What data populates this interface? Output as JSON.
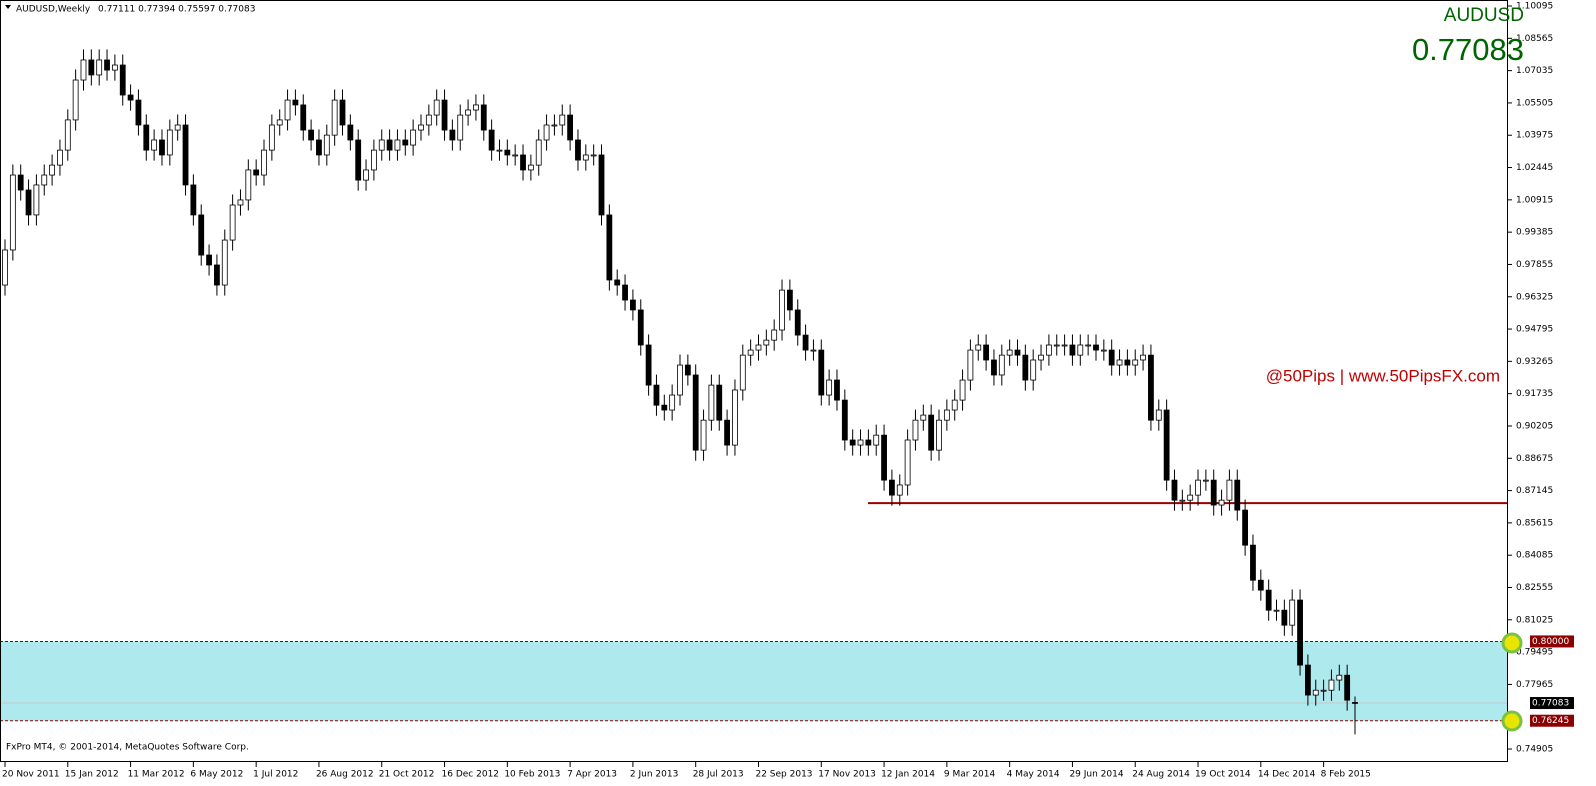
{
  "chart_data": {
    "type": "candlestick",
    "header": "AUDUSD,Weekly",
    "header_ohlc": "0.77111 0.77394 0.75597 0.77083",
    "title": "AUDUSD",
    "annotation": "@50Pips | www.50PipsFX.com",
    "copyright": "FxPro MT4, © 2001-2014, MetaQuotes Software Corp.",
    "up_color": "#ffffff",
    "down_color": "#000000",
    "ylim": [
      0.7429,
      1.1038
    ],
    "yticks": [
      1.10095,
      1.08565,
      1.07035,
      1.05505,
      1.03975,
      1.02445,
      1.00915,
      0.99385,
      0.97855,
      0.96325,
      0.94795,
      0.93265,
      0.91735,
      0.90205,
      0.88675,
      0.87145,
      0.85615,
      0.84085,
      0.82555,
      0.81025,
      0.79495,
      0.77965,
      0.74905
    ],
    "zone": {
      "color": "#aeeaed",
      "high": {
        "value": 0.8,
        "label": "0.80000"
      },
      "low": {
        "value": 0.76245,
        "label": "0.76245"
      }
    },
    "resistance": {
      "value": 0.8655,
      "color": "#990000"
    },
    "bid": {
      "value": 0.77083,
      "label": "0.77083"
    },
    "categories": [
      "20 Nov 2011",
      null,
      null,
      null,
      null,
      null,
      null,
      null,
      "15 Jan 2012",
      null,
      null,
      null,
      null,
      null,
      null,
      null,
      "11 Mar 2012",
      null,
      null,
      null,
      null,
      null,
      null,
      null,
      "6 May 2012",
      null,
      null,
      null,
      null,
      null,
      null,
      null,
      "1 Jul 2012",
      null,
      null,
      null,
      null,
      null,
      null,
      null,
      "26 Aug 2012",
      null,
      null,
      null,
      null,
      null,
      null,
      null,
      "21 Oct 2012",
      null,
      null,
      null,
      null,
      null,
      null,
      null,
      "16 Dec 2012",
      null,
      null,
      null,
      null,
      null,
      null,
      null,
      "10 Feb 2013",
      null,
      null,
      null,
      null,
      null,
      null,
      null,
      "7 Apr 2013",
      null,
      null,
      null,
      null,
      null,
      null,
      null,
      "2 Jun 2013",
      null,
      null,
      null,
      null,
      null,
      null,
      null,
      "28 Jul 2013",
      null,
      null,
      null,
      null,
      null,
      null,
      null,
      "22 Sep 2013",
      null,
      null,
      null,
      null,
      null,
      null,
      null,
      "17 Nov 2013",
      null,
      null,
      null,
      null,
      null,
      null,
      null,
      "12 Jan 2014",
      null,
      null,
      null,
      null,
      null,
      null,
      null,
      "9 Mar 2014",
      null,
      null,
      null,
      null,
      null,
      null,
      null,
      "4 May 2014",
      null,
      null,
      null,
      null,
      null,
      null,
      null,
      "29 Jun 2014",
      null,
      null,
      null,
      null,
      null,
      null,
      null,
      "24 Aug 2014",
      null,
      null,
      null,
      null,
      null,
      null,
      null,
      "19 Oct 2014",
      null,
      null,
      null,
      null,
      null,
      null,
      null,
      "14 Dec 2014",
      null,
      null,
      null,
      null,
      null,
      null,
      null,
      "8 Feb 2015",
      null,
      null,
      null,
      null
    ],
    "open": [
      0.9688,
      0.9854,
      1.0209,
      1.0138,
      1.002,
      1.0162,
      1.0209,
      1.0256,
      1.0327,
      1.047,
      1.0659,
      1.0754,
      1.0683,
      1.0754,
      1.0706,
      1.073,
      1.0588,
      1.0564,
      1.0446,
      1.0327,
      1.0375,
      1.0304,
      1.0422,
      1.0446,
      1.0162,
      1.002,
      0.983,
      0.9783,
      0.9688,
      0.9901,
      1.0067,
      1.0091,
      1.0233,
      1.0209,
      1.0327,
      1.0446,
      1.047,
      1.0564,
      1.0541,
      1.0422,
      1.0375,
      1.0304,
      1.0398,
      1.0564,
      1.0446,
      1.0375,
      1.0185,
      1.0233,
      1.0327,
      1.0375,
      1.0327,
      1.0375,
      1.0351,
      1.0422,
      1.0446,
      1.0493,
      1.0564,
      1.0422,
      1.0375,
      1.0493,
      1.0517,
      1.0541,
      1.0422,
      1.0327,
      1.0327,
      1.0304,
      1.0304,
      1.0233,
      1.0256,
      1.0375,
      1.0446,
      1.0446,
      1.0493,
      1.0375,
      1.028,
      1.0304,
      1.0304,
      1.002,
      0.9712,
      0.9688,
      0.9617,
      0.957,
      0.9404,
      0.9214,
      0.9119,
      0.9096,
      0.9167,
      0.9309,
      0.9262,
      0.8906,
      0.9048,
      0.9214,
      0.9048,
      0.893,
      0.9191,
      0.9356,
      0.938,
      0.9404,
      0.9427,
      0.9475,
      0.9664,
      0.957,
      0.9451,
      0.938,
      0.938,
      0.9167,
      0.9238,
      0.9143,
      0.8954,
      0.893,
      0.8954,
      0.893,
      0.8977,
      0.8764,
      0.8693,
      0.8741,
      0.8954,
      0.9048,
      0.9072,
      0.8906,
      0.9048,
      0.9096,
      0.9143,
      0.9238,
      0.938,
      0.9404,
      0.9333,
      0.9262,
      0.9356,
      0.938,
      0.9356,
      0.9238,
      0.9333,
      0.9356,
      0.9404,
      0.9404,
      0.9404,
      0.9356,
      0.9404,
      0.9404,
      0.938,
      0.938,
      0.9309,
      0.9333,
      0.9309,
      0.9333,
      0.9356,
      0.9048,
      0.9096,
      0.8764,
      0.8669,
      0.8669,
      0.8693,
      0.8764,
      0.8764,
      0.8646,
      0.8669,
      0.8764,
      0.8622,
      0.8456,
      0.829,
      0.8243,
      0.8148,
      0.8148,
      0.8077,
      0.8196,
      0.7888,
      0.7746,
      0.7769,
      0.7769,
      0.7817,
      0.784,
      0.77111
    ],
    "high": [
      0.9904,
      1.0259,
      1.0259,
      1.0188,
      1.0212,
      1.0259,
      1.0306,
      1.0377,
      1.052,
      1.0709,
      1.0804,
      1.0804,
      1.0804,
      1.0804,
      1.078,
      1.078,
      1.0638,
      1.0614,
      1.0496,
      1.0425,
      1.0425,
      1.0472,
      1.0496,
      1.0496,
      1.0212,
      1.007,
      0.988,
      0.9833,
      0.9951,
      1.0117,
      1.0141,
      1.0283,
      1.0283,
      1.0377,
      1.0496,
      1.052,
      1.0614,
      1.0614,
      1.0591,
      1.0472,
      1.0425,
      1.0448,
      1.0614,
      1.0614,
      1.0496,
      1.0425,
      1.0283,
      1.0377,
      1.0425,
      1.0425,
      1.0425,
      1.0425,
      1.0472,
      1.0496,
      1.0543,
      1.0614,
      1.0614,
      1.0472,
      1.0543,
      1.0567,
      1.0591,
      1.0591,
      1.0472,
      1.0377,
      1.0377,
      1.0354,
      1.0354,
      1.0306,
      1.0425,
      1.0496,
      1.0496,
      1.0543,
      1.0543,
      1.0425,
      1.0354,
      1.0354,
      1.0354,
      1.007,
      0.9762,
      0.9738,
      0.9667,
      0.962,
      0.9454,
      0.9264,
      0.9169,
      0.9217,
      0.9359,
      0.9359,
      0.9312,
      0.9098,
      0.9264,
      0.9264,
      0.9098,
      0.9241,
      0.9406,
      0.943,
      0.9454,
      0.9477,
      0.9525,
      0.9714,
      0.9714,
      0.962,
      0.9501,
      0.943,
      0.943,
      0.9288,
      0.9288,
      0.9193,
      0.9004,
      0.9004,
      0.9004,
      0.9027,
      0.9027,
      0.8814,
      0.8791,
      0.9004,
      0.9098,
      0.9122,
      0.9122,
      0.9098,
      0.9146,
      0.9193,
      0.9288,
      0.943,
      0.9454,
      0.9454,
      0.9383,
      0.9406,
      0.943,
      0.943,
      0.9406,
      0.9383,
      0.9406,
      0.9454,
      0.9454,
      0.9454,
      0.9454,
      0.9454,
      0.9454,
      0.9454,
      0.943,
      0.943,
      0.9383,
      0.9383,
      0.9383,
      0.9406,
      0.9406,
      0.9146,
      0.9146,
      0.8814,
      0.8719,
      0.8743,
      0.8814,
      0.8814,
      0.8814,
      0.8719,
      0.8814,
      0.8814,
      0.8672,
      0.8506,
      0.834,
      0.8293,
      0.8198,
      0.8198,
      0.8246,
      0.8246,
      0.7938,
      0.7819,
      0.7819,
      0.7867,
      0.789,
      0.789,
      0.77394
    ],
    "low": [
      0.9638,
      0.9804,
      1.0088,
      0.997,
      0.997,
      1.0112,
      1.0159,
      1.0206,
      1.0277,
      1.042,
      1.0609,
      1.0633,
      1.0633,
      1.0656,
      1.0656,
      1.0538,
      1.0514,
      1.0396,
      1.0277,
      1.0277,
      1.0254,
      1.0254,
      1.0372,
      1.0112,
      0.997,
      0.978,
      0.9733,
      0.9638,
      0.9638,
      0.9851,
      1.0017,
      1.0041,
      1.0159,
      1.0159,
      1.0277,
      1.0396,
      1.042,
      1.0491,
      1.0372,
      1.0325,
      1.0254,
      1.0254,
      1.0348,
      1.0396,
      1.0325,
      1.0135,
      1.0135,
      1.0183,
      1.0277,
      1.0277,
      1.0277,
      1.0301,
      1.0301,
      1.0372,
      1.0396,
      1.0443,
      1.0372,
      1.0325,
      1.0325,
      1.0443,
      1.0467,
      1.0372,
      1.0277,
      1.0277,
      1.0254,
      1.0254,
      1.0183,
      1.0183,
      1.0206,
      1.0325,
      1.0396,
      1.0396,
      1.0325,
      1.023,
      1.023,
      1.0254,
      0.997,
      0.9662,
      0.9638,
      0.9567,
      0.952,
      0.9354,
      0.9164,
      0.9069,
      0.9046,
      0.9046,
      0.9117,
      0.9212,
      0.8856,
      0.8856,
      0.8998,
      0.8998,
      0.888,
      0.888,
      0.9141,
      0.9306,
      0.933,
      0.9354,
      0.9377,
      0.9425,
      0.952,
      0.9401,
      0.933,
      0.933,
      0.9117,
      0.9117,
      0.9093,
      0.8904,
      0.888,
      0.888,
      0.888,
      0.888,
      0.8714,
      0.8643,
      0.8643,
      0.8691,
      0.8904,
      0.8998,
      0.8856,
      0.8856,
      0.8998,
      0.9046,
      0.9093,
      0.9188,
      0.933,
      0.9283,
      0.9212,
      0.9212,
      0.9306,
      0.9306,
      0.9188,
      0.9188,
      0.9283,
      0.9306,
      0.9354,
      0.9354,
      0.9306,
      0.9306,
      0.9354,
      0.933,
      0.933,
      0.9259,
      0.9259,
      0.9259,
      0.9259,
      0.9283,
      0.8998,
      0.8998,
      0.8714,
      0.8619,
      0.8619,
      0.8619,
      0.8643,
      0.8714,
      0.8596,
      0.8596,
      0.8619,
      0.8572,
      0.8406,
      0.824,
      0.8193,
      0.8098,
      0.8098,
      0.8027,
      0.8027,
      0.7838,
      0.7696,
      0.7696,
      0.7719,
      0.7719,
      0.7767,
      0.7672,
      0.75597
    ],
    "close": [
      0.9854,
      1.0209,
      1.0138,
      1.002,
      1.0162,
      1.0209,
      1.0256,
      1.0327,
      1.047,
      1.0659,
      1.0754,
      1.0683,
      1.0754,
      1.0706,
      1.073,
      1.0588,
      1.0564,
      1.0446,
      1.0327,
      1.0375,
      1.0304,
      1.0422,
      1.0446,
      1.0162,
      1.002,
      0.983,
      0.9783,
      0.9688,
      0.9901,
      1.0067,
      1.0091,
      1.0233,
      1.0209,
      1.0327,
      1.0446,
      1.047,
      1.0564,
      1.0541,
      1.0422,
      1.0375,
      1.0304,
      1.0398,
      1.0564,
      1.0446,
      1.0375,
      1.0185,
      1.0233,
      1.0327,
      1.0375,
      1.0327,
      1.0375,
      1.0351,
      1.0422,
      1.0446,
      1.0493,
      1.0564,
      1.0422,
      1.0375,
      1.0493,
      1.0517,
      1.0541,
      1.0422,
      1.0327,
      1.0327,
      1.0304,
      1.0304,
      1.0233,
      1.0256,
      1.0375,
      1.0446,
      1.0446,
      1.0493,
      1.0375,
      1.028,
      1.0304,
      1.0304,
      1.002,
      0.9712,
      0.9688,
      0.9617,
      0.957,
      0.9404,
      0.9214,
      0.9119,
      0.9096,
      0.9167,
      0.9309,
      0.9262,
      0.8906,
      0.9048,
      0.9214,
      0.9048,
      0.893,
      0.9191,
      0.9356,
      0.938,
      0.9404,
      0.9427,
      0.9475,
      0.9664,
      0.957,
      0.9451,
      0.938,
      0.938,
      0.9167,
      0.9238,
      0.9143,
      0.8954,
      0.893,
      0.8954,
      0.893,
      0.8977,
      0.8764,
      0.8693,
      0.8741,
      0.8954,
      0.9048,
      0.9072,
      0.8906,
      0.9048,
      0.9096,
      0.9143,
      0.9238,
      0.938,
      0.9404,
      0.9333,
      0.9262,
      0.9356,
      0.938,
      0.9356,
      0.9238,
      0.9333,
      0.9356,
      0.9404,
      0.9404,
      0.9404,
      0.9356,
      0.9404,
      0.9404,
      0.938,
      0.938,
      0.9309,
      0.9333,
      0.9309,
      0.9333,
      0.9356,
      0.9048,
      0.9096,
      0.8764,
      0.8669,
      0.8669,
      0.8693,
      0.8764,
      0.8764,
      0.8646,
      0.8669,
      0.8764,
      0.8622,
      0.8456,
      0.829,
      0.8243,
      0.8148,
      0.8148,
      0.8077,
      0.8196,
      0.7888,
      0.7746,
      0.7769,
      0.7769,
      0.7817,
      0.784,
      0.7722,
      0.77083
    ]
  }
}
